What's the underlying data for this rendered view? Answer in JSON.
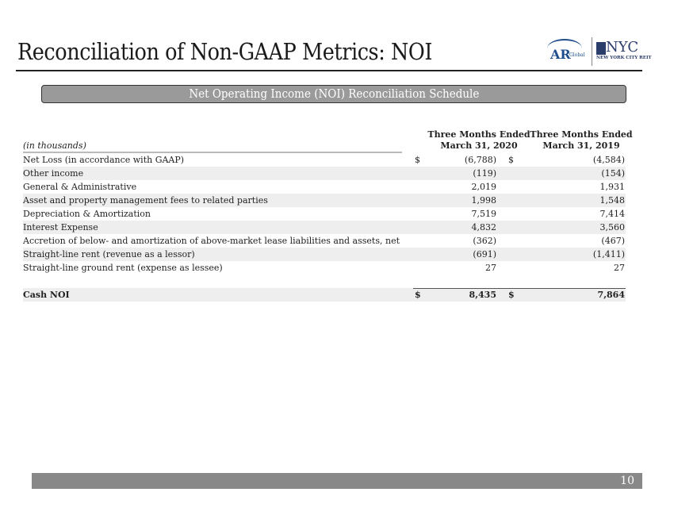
{
  "title": "Reconciliation of Non-GAAP Metrics: NOI",
  "logo": {
    "ar": "AR",
    "ar_sub": "Global",
    "nyc": "NYC",
    "nyc_sub": "NEW YORK CITY REIT"
  },
  "banner": "Net Operating Income (NOI) Reconciliation Schedule",
  "table": {
    "unit_label": "(in thousands)",
    "columns": [
      {
        "line1": "Three Months Ended",
        "line2": "March 31, 2020"
      },
      {
        "line1": "Three Months Ended",
        "line2": "March 31, 2019"
      }
    ],
    "rows": [
      {
        "label": "Net Loss (in accordance with GAAP)",
        "cur1": "$",
        "v1": "(6,788)",
        "cur2": "$",
        "v2": "(4,584)"
      },
      {
        "label": "Other income",
        "cur1": "",
        "v1": "(119)",
        "cur2": "",
        "v2": "(154)"
      },
      {
        "label": "General & Administrative",
        "cur1": "",
        "v1": "2,019",
        "cur2": "",
        "v2": "1,931"
      },
      {
        "label": "Asset and property management fees to related parties",
        "cur1": "",
        "v1": "1,998",
        "cur2": "",
        "v2": "1,548"
      },
      {
        "label": "Depreciation & Amortization",
        "cur1": "",
        "v1": "7,519",
        "cur2": "",
        "v2": "7,414"
      },
      {
        "label": "Interest Expense",
        "cur1": "",
        "v1": "4,832",
        "cur2": "",
        "v2": "3,560"
      },
      {
        "label": "Accretion of below- and amortization of above-market lease liabilities and assets, net",
        "cur1": "",
        "v1": "(362)",
        "cur2": "",
        "v2": "(467)"
      },
      {
        "label": "Straight-line rent (revenue as a lessor)",
        "cur1": "",
        "v1": "(691)",
        "cur2": "",
        "v2": "(1,411)"
      },
      {
        "label": "Straight-line ground rent (expense as lessee)",
        "cur1": "",
        "v1": "27",
        "cur2": "",
        "v2": "27"
      }
    ],
    "total": {
      "label": "Cash NOI",
      "cur1": "$",
      "v1": "8,435",
      "cur2": "$",
      "v2": "7,864"
    }
  },
  "page_number": "10"
}
